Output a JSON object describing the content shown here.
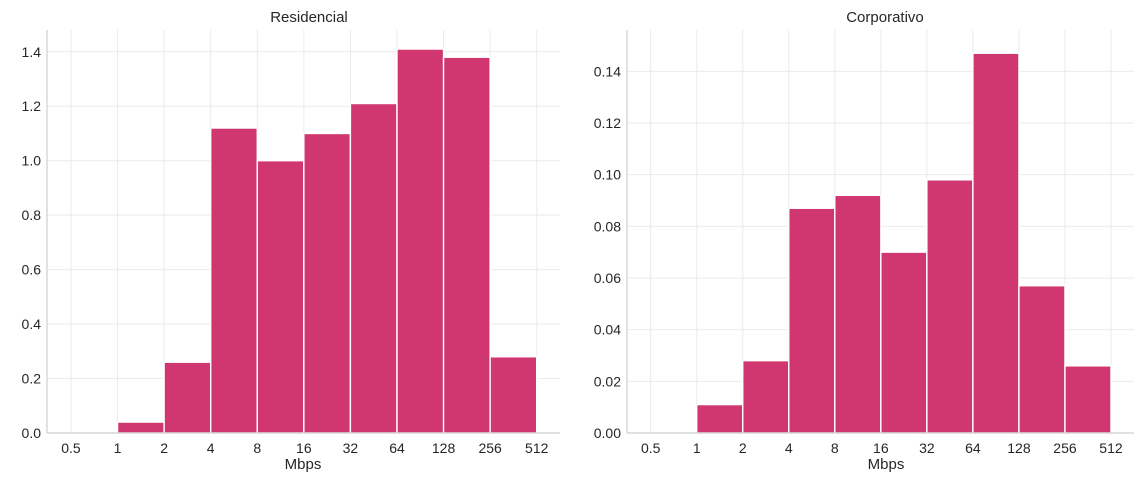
{
  "colors": {
    "bar": "#d03670",
    "grid": "#ebebeb",
    "spine": "#cfcfcf",
    "text": "#262626"
  },
  "chart_data": [
    {
      "type": "bar",
      "title": "Residencial",
      "xlabel": "Mbps",
      "ylabel": "",
      "x_scale": "log2",
      "xlim": [
        0.35,
        724
      ],
      "ylim": [
        0,
        1.48
      ],
      "grid": true,
      "xticks": [
        0.5,
        1,
        2,
        4,
        8,
        16,
        32,
        64,
        128,
        256,
        512
      ],
      "xtick_labels": [
        "0.5",
        "1",
        "2",
        "4",
        "8",
        "16",
        "32",
        "64",
        "128",
        "256",
        "512"
      ],
      "yticks": [
        0.0,
        0.2,
        0.4,
        0.6,
        0.8,
        1.0,
        1.2,
        1.4
      ],
      "ytick_labels": [
        "0.0",
        "0.2",
        "0.4",
        "0.6",
        "0.8",
        "1.0",
        "1.2",
        "1.4"
      ],
      "bins": [
        {
          "from": 0.5,
          "to": 1,
          "value": 0.0
        },
        {
          "from": 1,
          "to": 2,
          "value": 0.04
        },
        {
          "from": 2,
          "to": 4,
          "value": 0.26
        },
        {
          "from": 4,
          "to": 8,
          "value": 1.12
        },
        {
          "from": 8,
          "to": 16,
          "value": 1.0
        },
        {
          "from": 16,
          "to": 32,
          "value": 1.1
        },
        {
          "from": 32,
          "to": 64,
          "value": 1.21
        },
        {
          "from": 64,
          "to": 128,
          "value": 1.41
        },
        {
          "from": 128,
          "to": 256,
          "value": 1.38
        },
        {
          "from": 256,
          "to": 512,
          "value": 0.28
        }
      ]
    },
    {
      "type": "bar",
      "title": "Corporativo",
      "xlabel": "Mbps",
      "ylabel": "",
      "x_scale": "log2",
      "xlim": [
        0.35,
        724
      ],
      "ylim": [
        0,
        0.156
      ],
      "grid": true,
      "xticks": [
        0.5,
        1,
        2,
        4,
        8,
        16,
        32,
        64,
        128,
        256,
        512
      ],
      "xtick_labels": [
        "0.5",
        "1",
        "2",
        "4",
        "8",
        "16",
        "32",
        "64",
        "128",
        "256",
        "512"
      ],
      "yticks": [
        0.0,
        0.02,
        0.04,
        0.06,
        0.08,
        0.1,
        0.12,
        0.14
      ],
      "ytick_labels": [
        "0.00",
        "0.02",
        "0.04",
        "0.06",
        "0.08",
        "0.10",
        "0.12",
        "0.14"
      ],
      "bins": [
        {
          "from": 0.5,
          "to": 1,
          "value": 0.0
        },
        {
          "from": 1,
          "to": 2,
          "value": 0.011
        },
        {
          "from": 2,
          "to": 4,
          "value": 0.028
        },
        {
          "from": 4,
          "to": 8,
          "value": 0.087
        },
        {
          "from": 8,
          "to": 16,
          "value": 0.092
        },
        {
          "from": 16,
          "to": 32,
          "value": 0.07
        },
        {
          "from": 32,
          "to": 64,
          "value": 0.098
        },
        {
          "from": 64,
          "to": 128,
          "value": 0.147
        },
        {
          "from": 128,
          "to": 256,
          "value": 0.057
        },
        {
          "from": 256,
          "to": 512,
          "value": 0.026
        }
      ]
    }
  ]
}
